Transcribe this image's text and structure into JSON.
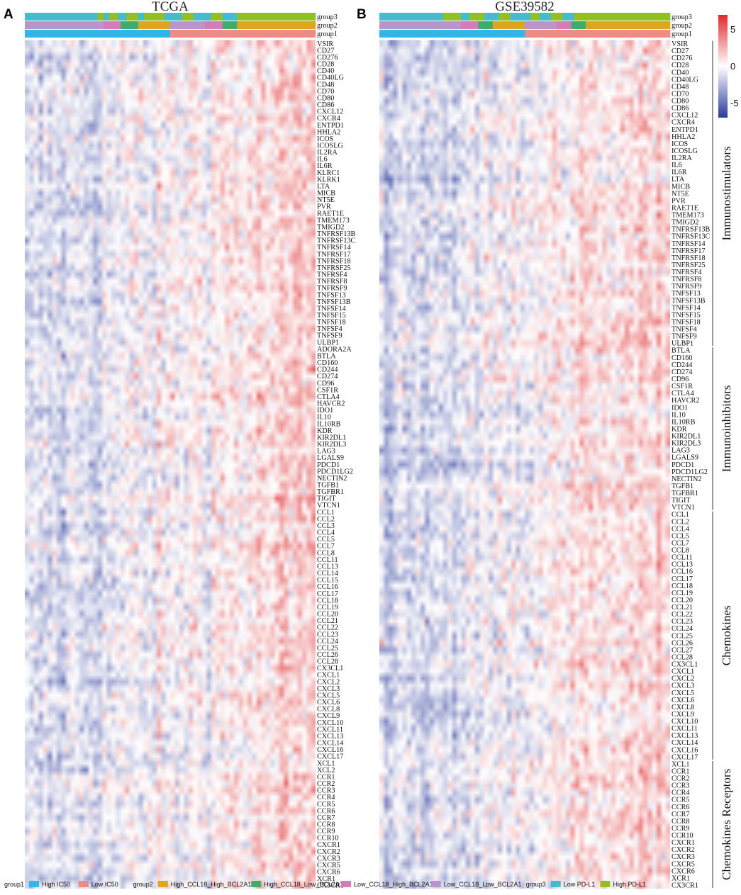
{
  "chart_data": {
    "type": "heatmap",
    "color_scale": {
      "min": -7,
      "max": 7,
      "ticks": [
        "5",
        "0",
        "-5"
      ],
      "tick_values": [
        5,
        0,
        -5
      ],
      "colors": {
        "low": "#2b3a9c",
        "mid": "#ffffff",
        "high": "#e0282a"
      }
    },
    "panels": [
      {
        "id": "A",
        "title": "TCGA",
        "annotation_rows": [
          "group3",
          "group2",
          "group1"
        ],
        "group1_segments": [
          [
            "High IC50",
            0.5
          ],
          [
            "Low IC50",
            0.5
          ]
        ],
        "group2_segments": [
          [
            "Low_CCL18_Low_BCL2A1",
            0.27
          ],
          [
            "Low_CCL18_High_BCL2A1",
            0.06
          ],
          [
            "High_CCL18_Low_BCL2A1",
            0.06
          ],
          [
            "High_CCL18_High_BCL2A1",
            0.11
          ],
          [
            "Low_CCL18_Low_BCL2A1",
            0.12
          ],
          [
            "Low_CCL18_High_BCL2A1",
            0.06
          ],
          [
            "High_CCL18_Low_BCL2A1",
            0.05
          ],
          [
            "High_CCL18_High_BCL2A1",
            0.27
          ]
        ],
        "group3_segments": [
          [
            "Low PD-L1",
            0.25
          ],
          [
            "High PD-L1",
            0.02
          ],
          [
            "Low PD-L1",
            0.02
          ],
          [
            "High PD-L1",
            0.03
          ],
          [
            "Low PD-L1",
            0.03
          ],
          [
            "High PD-L1",
            0.04
          ],
          [
            "Low PD-L1",
            0.02
          ],
          [
            "High PD-L1",
            0.07
          ],
          [
            "Low PD-L1",
            0.06
          ],
          [
            "High PD-L1",
            0.04
          ],
          [
            "Low PD-L1",
            0.06
          ],
          [
            "High PD-L1",
            0.04
          ],
          [
            "Low PD-L1",
            0.05
          ],
          [
            "High PD-L1",
            0.27
          ]
        ],
        "genes": [
          "VSIR",
          "CD27",
          "CD276",
          "CD28",
          "CD40",
          "CD40LG",
          "CD48",
          "CD70",
          "CD80",
          "CD86",
          "CXCL12",
          "CXCR4",
          "ENTPD1",
          "HHLA2",
          "ICOS",
          "ICOSLG",
          "IL2RA",
          "IL6",
          "IL6R",
          "KLRC1",
          "KLRK1",
          "LTA",
          "MICB",
          "NT5E",
          "PVR",
          "RAET1E",
          "TMEM173",
          "TMIGD2",
          "TNFRSF13B",
          "TNFRSF13C",
          "TNFRSF14",
          "TNFRSF17",
          "TNFRSF18",
          "TNFRSF25",
          "TNFRSF4",
          "TNFRSF8",
          "TNFRSF9",
          "TNFSF13",
          "TNFSF13B",
          "TNFSF14",
          "TNFSF15",
          "TNFSF18",
          "TNFSF4",
          "TNFSF9",
          "ULBP1",
          "ADORA2A",
          "BTLA",
          "CD160",
          "CD244",
          "CD274",
          "CD96",
          "CSF1R",
          "CTLA4",
          "HAVCR2",
          "IDO1",
          "IL10",
          "IL10RB",
          "KDR",
          "KIR2DL1",
          "KIR2DL3",
          "LAG3",
          "LGALS9",
          "PDCD1",
          "PDCD1LG2",
          "NECTIN2",
          "TGFB1",
          "TGFBR1",
          "TIGIT",
          "VTCN1",
          "CCL1",
          "CCL2",
          "CCL3",
          "CCL4",
          "CCL5",
          "CCL7",
          "CCL8",
          "CCL11",
          "CCL13",
          "CCL14",
          "CCL15",
          "CCL16",
          "CCL17",
          "CCL18",
          "CCL19",
          "CCL20",
          "CCL21",
          "CCL22",
          "CCL23",
          "CCL24",
          "CCL25",
          "CCL26",
          "CCL28",
          "CX3CL1",
          "CXCL1",
          "CXCL2",
          "CXCL3",
          "CXCL5",
          "CXCL6",
          "CXCL8",
          "CXCL9",
          "CXCL10",
          "CXCL11",
          "CXCL13",
          "CXCL14",
          "CXCL16",
          "CXCL17",
          "XCL1",
          "XCL2",
          "CCR1",
          "CCR2",
          "CCR3",
          "CCR4",
          "CCR5",
          "CCR6",
          "CCR7",
          "CCR8",
          "CCR9",
          "CCR10",
          "CXCR1",
          "CXCR2",
          "CXCR3",
          "CXCR5",
          "CXCR6",
          "XCR1",
          "CX3CR1"
        ]
      },
      {
        "id": "B",
        "title": "GSE39582",
        "annotation_rows": [
          "group3",
          "group2",
          "group1"
        ],
        "group1_segments": [
          [
            "High IC50",
            0.5
          ],
          [
            "Low IC50",
            0.5
          ]
        ],
        "group2_segments": [
          [
            "Low_CCL18_Low_BCL2A1",
            0.28
          ],
          [
            "Low_CCL18_High_BCL2A1",
            0.06
          ],
          [
            "High_CCL18_Low_BCL2A1",
            0.05
          ],
          [
            "High_CCL18_High_BCL2A1",
            0.11
          ],
          [
            "Low_CCL18_Low_BCL2A1",
            0.11
          ],
          [
            "Low_CCL18_High_BCL2A1",
            0.05
          ],
          [
            "High_CCL18_Low_BCL2A1",
            0.05
          ],
          [
            "High_CCL18_High_BCL2A1",
            0.29
          ]
        ],
        "group3_segments": [
          [
            "Low PD-L1",
            0.22
          ],
          [
            "High PD-L1",
            0.06
          ],
          [
            "Low PD-L1",
            0.03
          ],
          [
            "High PD-L1",
            0.05
          ],
          [
            "Low PD-L1",
            0.05
          ],
          [
            "High PD-L1",
            0.04
          ],
          [
            "Low PD-L1",
            0.07
          ],
          [
            "High PD-L1",
            0.03
          ],
          [
            "Low PD-L1",
            0.04
          ],
          [
            "High PD-L1",
            0.04
          ],
          [
            "Low PD-L1",
            0.04
          ],
          [
            "High PD-L1",
            0.33
          ]
        ],
        "genes": [
          "VSIR",
          "CD27",
          "CD276",
          "CD28",
          "CD40",
          "CD40LG",
          "CD48",
          "CD70",
          "CD80",
          "CD86",
          "CXCL12",
          "CXCR4",
          "ENTPD1",
          "HHLA2",
          "ICOS",
          "ICOSLG",
          "IL2RA",
          "IL6",
          "IL6R",
          "LTA",
          "MICB",
          "NT5E",
          "PVR",
          "RAET1E",
          "TMEM173",
          "TMIGD2",
          "TNFRSF13B",
          "TNFRSF13C",
          "TNFRSF14",
          "TNFRSF17",
          "TNFRSF18",
          "TNFRSF25",
          "TNFRSF4",
          "TNFRSF8",
          "TNFRSF9",
          "TNFSF13",
          "TNFSF13B",
          "TNFSF14",
          "TNFSF15",
          "TNFSF18",
          "TNFSF4",
          "TNFSF9",
          "ULBP1",
          "BTLA",
          "CD160",
          "CD244",
          "CD274",
          "CD96",
          "CSF1R",
          "CTLA4",
          "HAVCR2",
          "IDO1",
          "IL10",
          "IL10RB",
          "KDR",
          "KIR2DL1",
          "KIR2DL3",
          "LAG3",
          "LGALS9",
          "PDCD1",
          "PDCD1LG2",
          "NECTIN2",
          "TGFB1",
          "TGFBR1",
          "TIGIT",
          "VTCN1",
          "CCL1",
          "CCL2",
          "CCL4",
          "CCL5",
          "CCL7",
          "CCL8",
          "CCL11",
          "CCL13",
          "CCL16",
          "CCL17",
          "CCL18",
          "CCL19",
          "CCL20",
          "CCL21",
          "CCL22",
          "CCL23",
          "CCL24",
          "CCL25",
          "CCL26",
          "CCL27",
          "CCL28",
          "CX3CL1",
          "CXCL1",
          "CXCL2",
          "CXCL3",
          "CXCL5",
          "CXCL6",
          "CXCL8",
          "CXCL9",
          "CXCL10",
          "CXCL11",
          "CXCL13",
          "CXCL14",
          "CXCL16",
          "CXCL17",
          "XCL1",
          "CCR1",
          "CCR2",
          "CCR3",
          "CCR4",
          "CCR5",
          "CCR6",
          "CCR7",
          "CCR8",
          "CCR9",
          "CCR10",
          "CXCR1",
          "CXCR2",
          "CXCR3",
          "CXCR5",
          "CXCR6",
          "XCR1",
          "CX3CR1"
        ],
        "categories": [
          {
            "label": "Immunostimulators",
            "first": "VSIR",
            "last": "ULBP1"
          },
          {
            "label": "Immunoinhibitors",
            "first": "BTLA",
            "last": "VTCN1"
          },
          {
            "label": "Chemokines",
            "first": "CCL1",
            "last": "CXCL17"
          },
          {
            "label": "Chemokines Receptors",
            "first": "XCL1",
            "last": "CX3CR1"
          }
        ]
      }
    ],
    "legend": [
      {
        "group": "group1",
        "items": [
          {
            "label": "High IC50",
            "color": "#2eb7e8"
          },
          {
            "label": "Low IC50",
            "color": "#ee8b84"
          }
        ]
      },
      {
        "group": "group2",
        "items": [
          {
            "label": "High_CCL18_High_BCL2A1",
            "color": "#e0a51e"
          },
          {
            "label": "High_CCL18_Low_BCL2A1",
            "color": "#3fad6a"
          },
          {
            "label": "Low_CCL18_High_BCL2A1",
            "color": "#d57bb8"
          },
          {
            "label": "Low_CCL18_Low_BCL2A1",
            "color": "#b896cc"
          }
        ]
      },
      {
        "group": "group3",
        "items": [
          {
            "label": "Low PD-L1",
            "color": "#45bccb"
          },
          {
            "label": "High PD-L1",
            "color": "#93c020"
          }
        ]
      }
    ]
  }
}
